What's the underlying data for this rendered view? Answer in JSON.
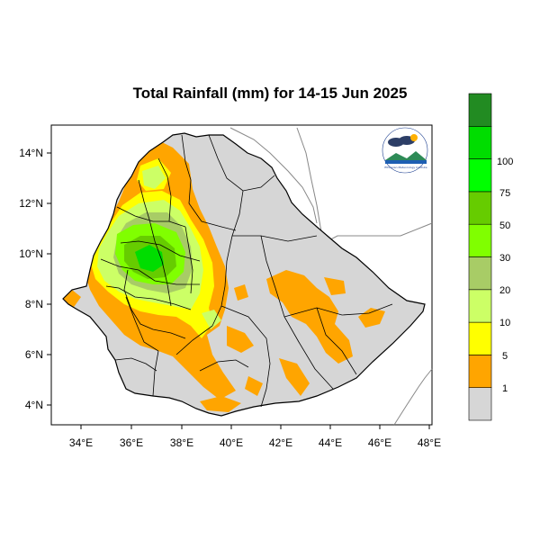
{
  "title": "Total Rainfall (mm) for 14-15 Jun 2025",
  "axes": {
    "lon_ticks": [
      "34°E",
      "36°E",
      "38°E",
      "40°E",
      "42°E",
      "44°E",
      "46°E",
      "48°E"
    ],
    "lat_ticks": [
      "14°N",
      "12°N",
      "10°N",
      "8°N",
      "6°N",
      "4°N"
    ]
  },
  "legend": {
    "bins": [
      {
        "color": "#d6d6d6"
      },
      {
        "color": "#ffa500"
      },
      {
        "color": "#ffff00"
      },
      {
        "color": "#ccff66"
      },
      {
        "color": "#a8cc66"
      },
      {
        "color": "#80ff00"
      },
      {
        "color": "#66cc00"
      },
      {
        "color": "#00ff00"
      },
      {
        "color": "#00dd00"
      },
      {
        "color": "#228b22"
      }
    ],
    "labels": [
      "1",
      "5",
      "10",
      "20",
      "30",
      "50",
      "75",
      "100"
    ]
  },
  "logo": {
    "name": "ethiopian-meteorology-institute-logo",
    "text": "Ethiopian Meteorology Institute"
  },
  "colors": {
    "no_rain": "#d6d6d6",
    "rain_1_5": "#ffa500",
    "border": "#000000",
    "neighbor_border": "#888888"
  }
}
